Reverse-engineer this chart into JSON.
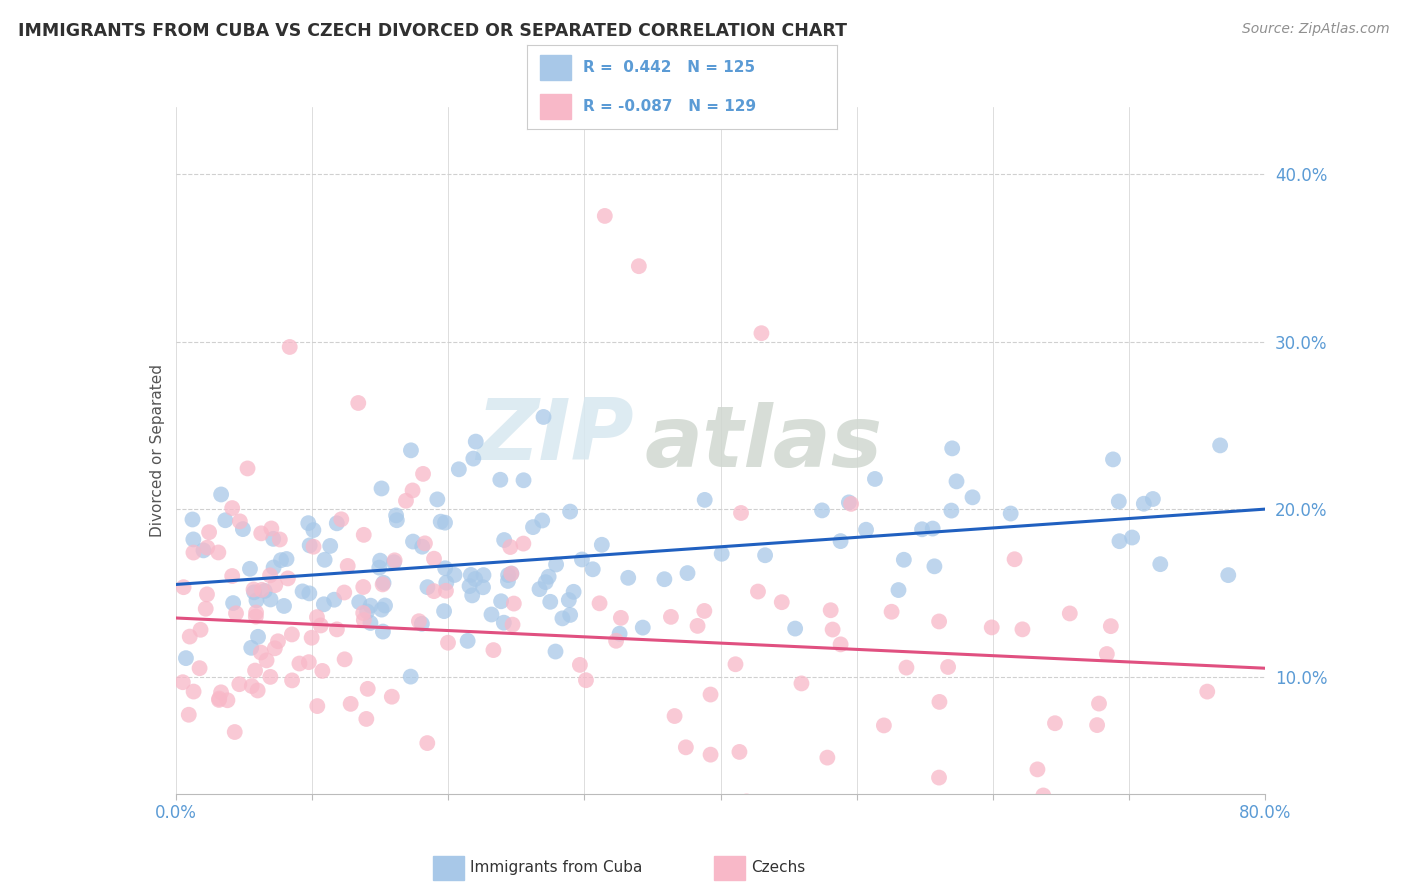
{
  "title": "IMMIGRANTS FROM CUBA VS CZECH DIVORCED OR SEPARATED CORRELATION CHART",
  "source": "Source: ZipAtlas.com",
  "ylabel": "Divorced or Separated",
  "legend_label_blue": "Immigrants from Cuba",
  "legend_label_pink": "Czechs",
  "R_blue": 0.442,
  "N_blue": 125,
  "R_pink": -0.087,
  "N_pink": 129,
  "xlim": [
    0.0,
    0.8
  ],
  "ylim": [
    0.03,
    0.44
  ],
  "xticks": [
    0.0,
    0.1,
    0.2,
    0.3,
    0.4,
    0.5,
    0.6,
    0.7,
    0.8
  ],
  "yticks": [
    0.1,
    0.2,
    0.3,
    0.4
  ],
  "ytick_labels": [
    "10.0%",
    "20.0%",
    "30.0%",
    "40.0%"
  ],
  "color_blue": "#a8c8e8",
  "color_pink": "#f8b8c8",
  "trend_blue": "#2060c0",
  "trend_pink": "#e05080",
  "watermark_zip": "ZIP",
  "watermark_atlas": "atlas",
  "background_color": "#ffffff",
  "grid_color": "#d0d0d0",
  "title_color": "#303030",
  "source_color": "#909090",
  "tick_color": "#5b9bd5"
}
